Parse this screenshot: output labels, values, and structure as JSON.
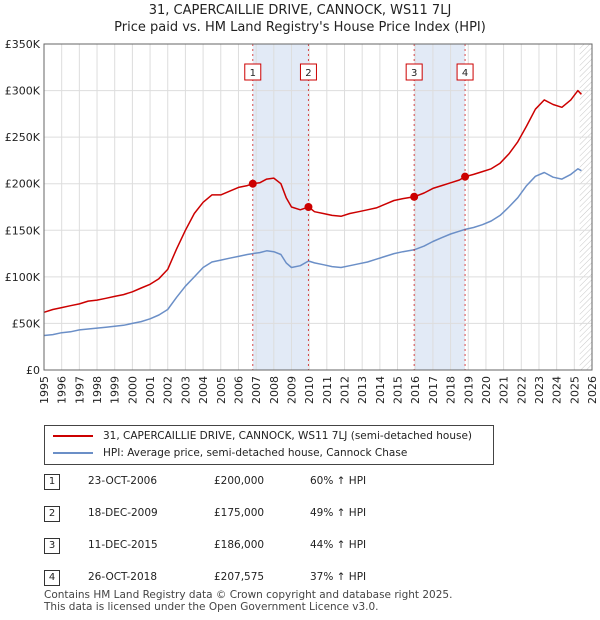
{
  "chart_data": {
    "type": "line",
    "title": "31, CAPERCAILLIE DRIVE, CANNOCK, WS11 7LJ",
    "subtitle": "Price paid vs. HM Land Registry's House Price Index (HPI)",
    "xlabel": "",
    "ylabel": "",
    "xlim": [
      1995,
      2026
    ],
    "ylim": [
      0,
      350000
    ],
    "x_ticks": [
      "1995",
      "1996",
      "1997",
      "1998",
      "1999",
      "2000",
      "2001",
      "2002",
      "2003",
      "2004",
      "2005",
      "2006",
      "2007",
      "2008",
      "2009",
      "2010",
      "2011",
      "2012",
      "2013",
      "2014",
      "2015",
      "2016",
      "2017",
      "2018",
      "2019",
      "2020",
      "2021",
      "2022",
      "2023",
      "2024",
      "2025",
      "2026"
    ],
    "y_ticks": [
      {
        "value": 0,
        "label": "£0"
      },
      {
        "value": 50000,
        "label": "£50K"
      },
      {
        "value": 100000,
        "label": "£100K"
      },
      {
        "value": 150000,
        "label": "£150K"
      },
      {
        "value": 200000,
        "label": "£200K"
      },
      {
        "value": 250000,
        "label": "£250K"
      },
      {
        "value": 300000,
        "label": "£300K"
      },
      {
        "value": 350000,
        "label": "£350K"
      }
    ],
    "grid": true,
    "series": [
      {
        "name": "31, CAPERCAILLIE DRIVE, CANNOCK, WS11 7LJ (semi-detached house)",
        "color": "#cc0000",
        "points": [
          [
            1995.0,
            62000
          ],
          [
            1995.5,
            65000
          ],
          [
            1996.0,
            67000
          ],
          [
            1996.5,
            69000
          ],
          [
            1997.0,
            71000
          ],
          [
            1997.5,
            74000
          ],
          [
            1998.0,
            75000
          ],
          [
            1998.5,
            77000
          ],
          [
            1999.0,
            79000
          ],
          [
            1999.5,
            81000
          ],
          [
            2000.0,
            84000
          ],
          [
            2000.5,
            88000
          ],
          [
            2001.0,
            92000
          ],
          [
            2001.5,
            98000
          ],
          [
            2002.0,
            108000
          ],
          [
            2002.5,
            130000
          ],
          [
            2003.0,
            150000
          ],
          [
            2003.5,
            168000
          ],
          [
            2004.0,
            180000
          ],
          [
            2004.5,
            188000
          ],
          [
            2005.0,
            188000
          ],
          [
            2005.5,
            192000
          ],
          [
            2006.0,
            196000
          ],
          [
            2006.5,
            198000
          ],
          [
            2006.81,
            200000
          ],
          [
            2007.2,
            201000
          ],
          [
            2007.6,
            205000
          ],
          [
            2008.0,
            206000
          ],
          [
            2008.4,
            200000
          ],
          [
            2008.7,
            185000
          ],
          [
            2009.0,
            175000
          ],
          [
            2009.5,
            172000
          ],
          [
            2009.96,
            175000
          ],
          [
            2010.3,
            170000
          ],
          [
            2010.8,
            168000
          ],
          [
            2011.3,
            166000
          ],
          [
            2011.8,
            165000
          ],
          [
            2012.3,
            168000
          ],
          [
            2012.8,
            170000
          ],
          [
            2013.3,
            172000
          ],
          [
            2013.8,
            174000
          ],
          [
            2014.3,
            178000
          ],
          [
            2014.8,
            182000
          ],
          [
            2015.3,
            184000
          ],
          [
            2015.94,
            186000
          ],
          [
            2016.5,
            190000
          ],
          [
            2017.0,
            195000
          ],
          [
            2017.5,
            198000
          ],
          [
            2018.0,
            201000
          ],
          [
            2018.5,
            204000
          ],
          [
            2018.82,
            207575
          ],
          [
            2019.3,
            210000
          ],
          [
            2019.8,
            213000
          ],
          [
            2020.3,
            216000
          ],
          [
            2020.8,
            222000
          ],
          [
            2021.3,
            232000
          ],
          [
            2021.8,
            245000
          ],
          [
            2022.3,
            262000
          ],
          [
            2022.8,
            280000
          ],
          [
            2023.3,
            290000
          ],
          [
            2023.8,
            285000
          ],
          [
            2024.3,
            282000
          ],
          [
            2024.8,
            290000
          ],
          [
            2025.2,
            300000
          ],
          [
            2025.4,
            296000
          ]
        ]
      },
      {
        "name": "HPI: Average price, semi-detached house, Cannock Chase",
        "color": "#6b8fc7",
        "points": [
          [
            1995.0,
            37000
          ],
          [
            1995.5,
            38000
          ],
          [
            1996.0,
            40000
          ],
          [
            1996.5,
            41000
          ],
          [
            1997.0,
            43000
          ],
          [
            1997.5,
            44000
          ],
          [
            1998.0,
            45000
          ],
          [
            1998.5,
            46000
          ],
          [
            1999.0,
            47000
          ],
          [
            1999.5,
            48000
          ],
          [
            2000.0,
            50000
          ],
          [
            2000.5,
            52000
          ],
          [
            2001.0,
            55000
          ],
          [
            2001.5,
            59000
          ],
          [
            2002.0,
            65000
          ],
          [
            2002.5,
            78000
          ],
          [
            2003.0,
            90000
          ],
          [
            2003.5,
            100000
          ],
          [
            2004.0,
            110000
          ],
          [
            2004.5,
            116000
          ],
          [
            2005.0,
            118000
          ],
          [
            2005.5,
            120000
          ],
          [
            2006.0,
            122000
          ],
          [
            2006.5,
            124000
          ],
          [
            2006.81,
            125000
          ],
          [
            2007.2,
            126000
          ],
          [
            2007.6,
            128000
          ],
          [
            2008.0,
            127000
          ],
          [
            2008.4,
            124000
          ],
          [
            2008.7,
            115000
          ],
          [
            2009.0,
            110000
          ],
          [
            2009.5,
            112000
          ],
          [
            2009.96,
            117000
          ],
          [
            2010.3,
            115000
          ],
          [
            2010.8,
            113000
          ],
          [
            2011.3,
            111000
          ],
          [
            2011.8,
            110000
          ],
          [
            2012.3,
            112000
          ],
          [
            2012.8,
            114000
          ],
          [
            2013.3,
            116000
          ],
          [
            2013.8,
            119000
          ],
          [
            2014.3,
            122000
          ],
          [
            2014.8,
            125000
          ],
          [
            2015.3,
            127000
          ],
          [
            2015.94,
            129000
          ],
          [
            2016.5,
            133000
          ],
          [
            2017.0,
            138000
          ],
          [
            2017.5,
            142000
          ],
          [
            2018.0,
            146000
          ],
          [
            2018.5,
            149000
          ],
          [
            2018.82,
            151000
          ],
          [
            2019.3,
            153000
          ],
          [
            2019.8,
            156000
          ],
          [
            2020.3,
            160000
          ],
          [
            2020.8,
            166000
          ],
          [
            2021.3,
            175000
          ],
          [
            2021.8,
            185000
          ],
          [
            2022.3,
            198000
          ],
          [
            2022.8,
            208000
          ],
          [
            2023.3,
            212000
          ],
          [
            2023.8,
            207000
          ],
          [
            2024.3,
            205000
          ],
          [
            2024.8,
            210000
          ],
          [
            2025.2,
            216000
          ],
          [
            2025.4,
            214000
          ]
        ]
      }
    ],
    "markers": [
      {
        "label": "1",
        "x": 2006.81,
        "price": 200000
      },
      {
        "label": "2",
        "x": 2009.96,
        "price": 175000
      },
      {
        "label": "3",
        "x": 2015.94,
        "price": 186000
      },
      {
        "label": "4",
        "x": 2018.82,
        "price": 207575
      }
    ],
    "shaded_ranges": [
      [
        2006.81,
        2009.96
      ],
      [
        2015.94,
        2018.82
      ]
    ],
    "hatched_after": 2025.3
  },
  "legend": {
    "red_label": "31, CAPERCAILLIE DRIVE, CANNOCK, WS11 7LJ (semi-detached house)",
    "blue_label": "HPI: Average price, semi-detached house, Cannock Chase"
  },
  "sales": [
    {
      "num": "1",
      "date": "23-OCT-2006",
      "price": "£200,000",
      "hpi": "60% ↑ HPI"
    },
    {
      "num": "2",
      "date": "18-DEC-2009",
      "price": "£175,000",
      "hpi": "49% ↑ HPI"
    },
    {
      "num": "3",
      "date": "11-DEC-2015",
      "price": "£186,000",
      "hpi": "44% ↑ HPI"
    },
    {
      "num": "4",
      "date": "26-OCT-2018",
      "price": "£207,575",
      "hpi": "37% ↑ HPI"
    }
  ],
  "footer": {
    "line1": "Contains HM Land Registry data © Crown copyright and database right 2025.",
    "line2": "This data is licensed under the Open Government Licence v3.0."
  }
}
